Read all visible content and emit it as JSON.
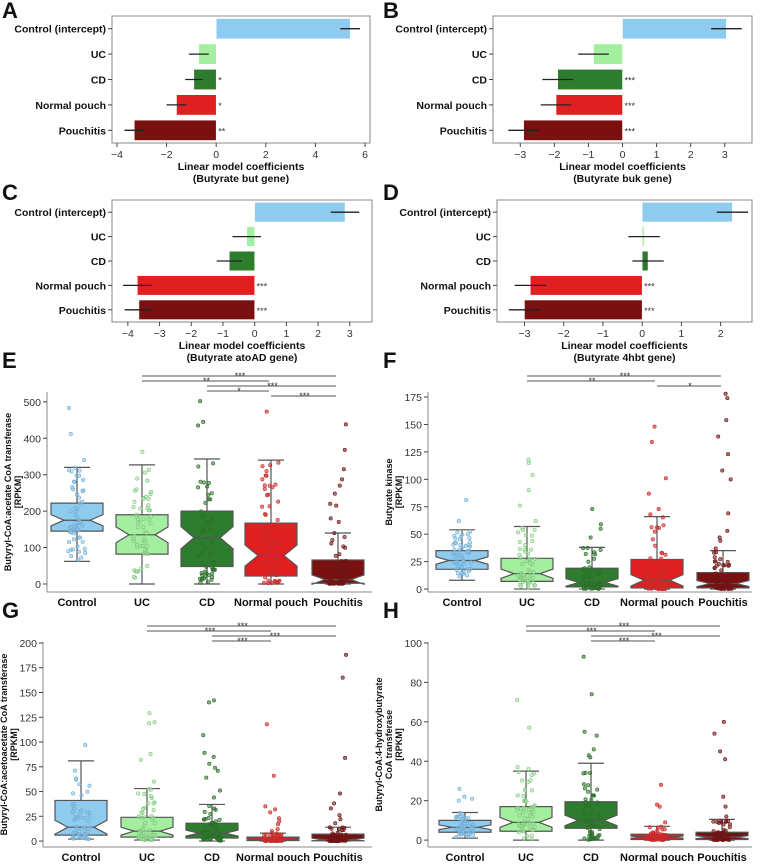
{
  "colors": {
    "Control": "#8ecbef",
    "UC": "#a4eea0",
    "CD": "#2e7d2e",
    "Normal pouch": "#e02020",
    "Pouchitis": "#7a1010"
  },
  "chart_data": [
    {
      "panel": "A",
      "type": "bar",
      "orientation": "horizontal",
      "categories": [
        "Control (intercept)",
        "UC",
        "CD",
        "Normal pouch",
        "Pouchitis"
      ],
      "values": [
        5.4,
        -0.7,
        -0.9,
        -1.6,
        -3.3
      ],
      "errors": [
        0.4,
        0.4,
        0.35,
        0.4,
        0.4
      ],
      "significance": [
        "",
        "",
        "*",
        "*",
        "**"
      ],
      "xlabel": [
        "Linear model coefficients",
        "(Butyrate but gene)"
      ],
      "xticks": [
        "−4",
        "−2",
        "0",
        "2",
        "4",
        "6"
      ],
      "xtick_values": [
        -4,
        -2,
        0,
        2,
        4,
        6
      ],
      "xlim": [
        -4.2,
        6.2
      ]
    },
    {
      "panel": "B",
      "type": "bar",
      "orientation": "horizontal",
      "categories": [
        "Control (intercept)",
        "UC",
        "CD",
        "Normal pouch",
        "Pouchitis"
      ],
      "values": [
        3.05,
        -0.85,
        -1.9,
        -1.95,
        -2.9
      ],
      "errors": [
        0.45,
        0.45,
        0.45,
        0.45,
        0.45
      ],
      "significance": [
        "",
        "",
        "***",
        "***",
        "***"
      ],
      "xlabel": [
        "Linear model coefficients",
        "(Butyrate buk gene)"
      ],
      "xticks": [
        "−3",
        "−2",
        "−1",
        "0",
        "1",
        "2",
        "3"
      ],
      "xtick_values": [
        -3,
        -2,
        -1,
        0,
        1,
        2,
        3
      ],
      "xlim": [
        -3.8,
        3.8
      ]
    },
    {
      "panel": "C",
      "type": "bar",
      "orientation": "horizontal",
      "categories": [
        "Control (intercept)",
        "UC",
        "CD",
        "Normal pouch",
        "Pouchitis"
      ],
      "values": [
        2.85,
        -0.25,
        -0.8,
        -3.7,
        -3.65
      ],
      "errors": [
        0.45,
        0.45,
        0.4,
        0.45,
        0.45
      ],
      "significance": [
        "",
        "",
        "",
        "***",
        "***"
      ],
      "xlabel": [
        "Linear model coefficients",
        "(Butyrate atoAD gene)"
      ],
      "xticks": [
        "−4",
        "−3",
        "−2",
        "−1",
        "0",
        "1",
        "2",
        "3"
      ],
      "xtick_values": [
        -4,
        -3,
        -2,
        -1,
        0,
        1,
        2,
        3
      ],
      "xlim": [
        -4.5,
        3.7
      ]
    },
    {
      "panel": "D",
      "type": "bar",
      "orientation": "horizontal",
      "categories": [
        "Control (intercept)",
        "UC",
        "CD",
        "Normal pouch",
        "Pouchitis"
      ],
      "values": [
        2.3,
        0.05,
        0.15,
        -2.85,
        -3.0
      ],
      "errors": [
        0.4,
        0.4,
        0.4,
        0.4,
        0.4
      ],
      "significance": [
        "",
        "",
        "",
        "***",
        "***"
      ],
      "xlabel": [
        "Linear model coefficients",
        "(Butyrate 4hbt gene)"
      ],
      "xticks": [
        "−3",
        "−2",
        "−1",
        "0",
        "1",
        "2"
      ],
      "xtick_values": [
        -3,
        -2,
        -1,
        0,
        1,
        2
      ],
      "xlim": [
        -3.7,
        2.8
      ]
    },
    {
      "panel": "E",
      "type": "box",
      "categories": [
        "Control",
        "UC",
        "CD",
        "Normal pouch",
        "Pouchitis"
      ],
      "ylabel": [
        "Butyryl-CoA:acetate CoA transferase",
        "[RPKM]"
      ],
      "yticks": [
        "0",
        "100",
        "200",
        "300",
        "400",
        "500"
      ],
      "ytick_values": [
        0,
        100,
        200,
        300,
        400,
        500
      ],
      "ylim": [
        -22,
        527
      ],
      "boxes": [
        {
          "whislo": 62,
          "q1": 145,
          "med": 175,
          "q3": 222,
          "whishi": 320,
          "outliers": [
            340,
            412,
            483
          ]
        },
        {
          "whislo": 0,
          "q1": 82,
          "med": 135,
          "q3": 190,
          "whishi": 327,
          "outliers": [
            363
          ]
        },
        {
          "whislo": 0,
          "q1": 48,
          "med": 127,
          "q3": 200,
          "whishi": 343,
          "outliers": [
            435,
            445,
            502
          ]
        },
        {
          "whislo": 0,
          "q1": 22,
          "med": 78,
          "q3": 167,
          "whishi": 340,
          "outliers": [
            473
          ]
        },
        {
          "whislo": 0,
          "q1": 2,
          "med": 12,
          "q3": 66,
          "whishi": 140,
          "outliers": [
            170,
            180,
            215,
            220,
            248,
            270,
            287,
            315,
            368,
            438
          ]
        }
      ],
      "brackets": [
        {
          "from": 1,
          "to": 4,
          "label": "***"
        },
        {
          "from": 1,
          "to": 3,
          "label": "**"
        },
        {
          "from": 2,
          "to": 4,
          "label": "***"
        },
        {
          "from": 2,
          "to": 3,
          "label": "*"
        },
        {
          "from": 3,
          "to": 4,
          "label": "***"
        }
      ]
    },
    {
      "panel": "F",
      "type": "box",
      "categories": [
        "Control",
        "UC",
        "CD",
        "Normal pouch",
        "Pouchitis"
      ],
      "ylabel": [
        "Butyrate kinase",
        "[RPKM]"
      ],
      "yticks": [
        "0",
        "25",
        "50",
        "75",
        "100",
        "125",
        "150",
        "175"
      ],
      "ytick_values": [
        0,
        25,
        50,
        75,
        100,
        125,
        150,
        175
      ],
      "ylim": [
        -2.7,
        179.6
      ],
      "boxes": [
        {
          "whislo": 8,
          "q1": 18,
          "med": 26,
          "q3": 35,
          "whishi": 54,
          "outliers": [
            62,
            81
          ]
        },
        {
          "whislo": 0,
          "q1": 7,
          "med": 14,
          "q3": 28,
          "whishi": 57,
          "outliers": [
            62,
            76,
            90,
            104,
            115,
            118
          ]
        },
        {
          "whislo": 0,
          "q1": 2,
          "med": 6,
          "q3": 19,
          "whishi": 38,
          "outliers": [
            47,
            55,
            59,
            73
          ]
        },
        {
          "whislo": 0,
          "q1": 1,
          "med": 8,
          "q3": 27,
          "whishi": 66,
          "outliers": [
            68,
            73,
            87,
            101,
            134,
            148
          ]
        },
        {
          "whislo": 0,
          "q1": 1,
          "med": 5,
          "q3": 15,
          "whishi": 35,
          "outliers": [
            37,
            44,
            47,
            53,
            69,
            100,
            108,
            123,
            139,
            154,
            174,
            178
          ]
        }
      ],
      "brackets": [
        {
          "from": 1,
          "to": 4,
          "label": "***"
        },
        {
          "from": 1,
          "to": 3,
          "label": "**"
        },
        {
          "from": 3,
          "to": 4,
          "label": "*"
        }
      ]
    },
    {
      "panel": "G",
      "type": "box",
      "categories": [
        "Control",
        "UC",
        "CD",
        "Normal pouch",
        "Pouchitis"
      ],
      "ylabel": [
        "Butyryl-CoA:acetoacetate CoA transferase",
        "[RPKM]"
      ],
      "yticks": [
        "0",
        "25",
        "50",
        "75",
        "100",
        "125",
        "150",
        "175",
        "200"
      ],
      "ytick_values": [
        0,
        25,
        50,
        75,
        100,
        125,
        150,
        175,
        200
      ],
      "ylim": [
        -6,
        201
      ],
      "boxes": [
        {
          "whislo": 2,
          "q1": 6,
          "med": 14,
          "q3": 41,
          "whishi": 81,
          "outliers": [
            97
          ]
        },
        {
          "whislo": 1,
          "q1": 4,
          "med": 10,
          "q3": 24,
          "whishi": 53,
          "outliers": [
            60,
            82,
            88,
            119,
            120,
            129
          ]
        },
        {
          "whislo": 0,
          "q1": 3,
          "med": 8,
          "q3": 18,
          "whishi": 37,
          "outliers": [
            44,
            51,
            64,
            71,
            74,
            78,
            85,
            89,
            107,
            140,
            142
          ]
        },
        {
          "whislo": 0,
          "q1": 0.5,
          "med": 1.5,
          "q3": 4,
          "whishi": 8,
          "outliers": [
            10,
            12,
            17,
            20,
            23,
            29,
            32,
            35,
            66,
            118
          ]
        },
        {
          "whislo": 0,
          "q1": 0.3,
          "med": 1.5,
          "q3": 7,
          "whishi": 14,
          "outliers": [
            18,
            22,
            26,
            33,
            38,
            48,
            84,
            165,
            188
          ]
        }
      ],
      "brackets": [
        {
          "from": 1,
          "to": 4,
          "label": "***"
        },
        {
          "from": 1,
          "to": 3,
          "label": "***"
        },
        {
          "from": 2,
          "to": 4,
          "label": "***"
        },
        {
          "from": 2,
          "to": 3,
          "label": "***"
        }
      ]
    },
    {
      "panel": "H",
      "type": "box",
      "categories": [
        "Control",
        "UC",
        "CD",
        "Normal pouch",
        "Pouchitis"
      ],
      "ylabel": [
        "Butyryl-CoA:4-hydroxybutyrate",
        "CoA transferase",
        "[RPKM]"
      ],
      "yticks": [
        "0",
        "20",
        "40",
        "60",
        "80",
        "100"
      ],
      "ytick_values": [
        0,
        20,
        40,
        60,
        80,
        100
      ],
      "ylim": [
        -3.5,
        100.5
      ],
      "boxes": [
        {
          "whislo": 1,
          "q1": 4,
          "med": 6.5,
          "q3": 10,
          "whishi": 14,
          "outliers": [
            20,
            21,
            22,
            26
          ]
        },
        {
          "whislo": 0,
          "q1": 4.5,
          "med": 9,
          "q3": 17,
          "whishi": 35,
          "outliers": [
            36,
            37,
            57,
            71
          ]
        },
        {
          "whislo": 0,
          "q1": 6,
          "med": 10,
          "q3": 19.5,
          "whishi": 39,
          "outliers": [
            42,
            43,
            46,
            53,
            55,
            74,
            93
          ]
        },
        {
          "whislo": 0,
          "q1": 0.3,
          "med": 1.5,
          "q3": 3,
          "whishi": 7,
          "outliers": [
            9,
            17,
            18,
            28
          ]
        },
        {
          "whislo": 0,
          "q1": 0.3,
          "med": 1.5,
          "q3": 4,
          "whishi": 10.5,
          "outliers": [
            12,
            17,
            22,
            41,
            45,
            54,
            60
          ]
        }
      ],
      "brackets": [
        {
          "from": 1,
          "to": 4,
          "label": "***"
        },
        {
          "from": 1,
          "to": 3,
          "label": "***"
        },
        {
          "from": 2,
          "to": 4,
          "label": "***"
        },
        {
          "from": 2,
          "to": 3,
          "label": "***"
        }
      ]
    }
  ]
}
